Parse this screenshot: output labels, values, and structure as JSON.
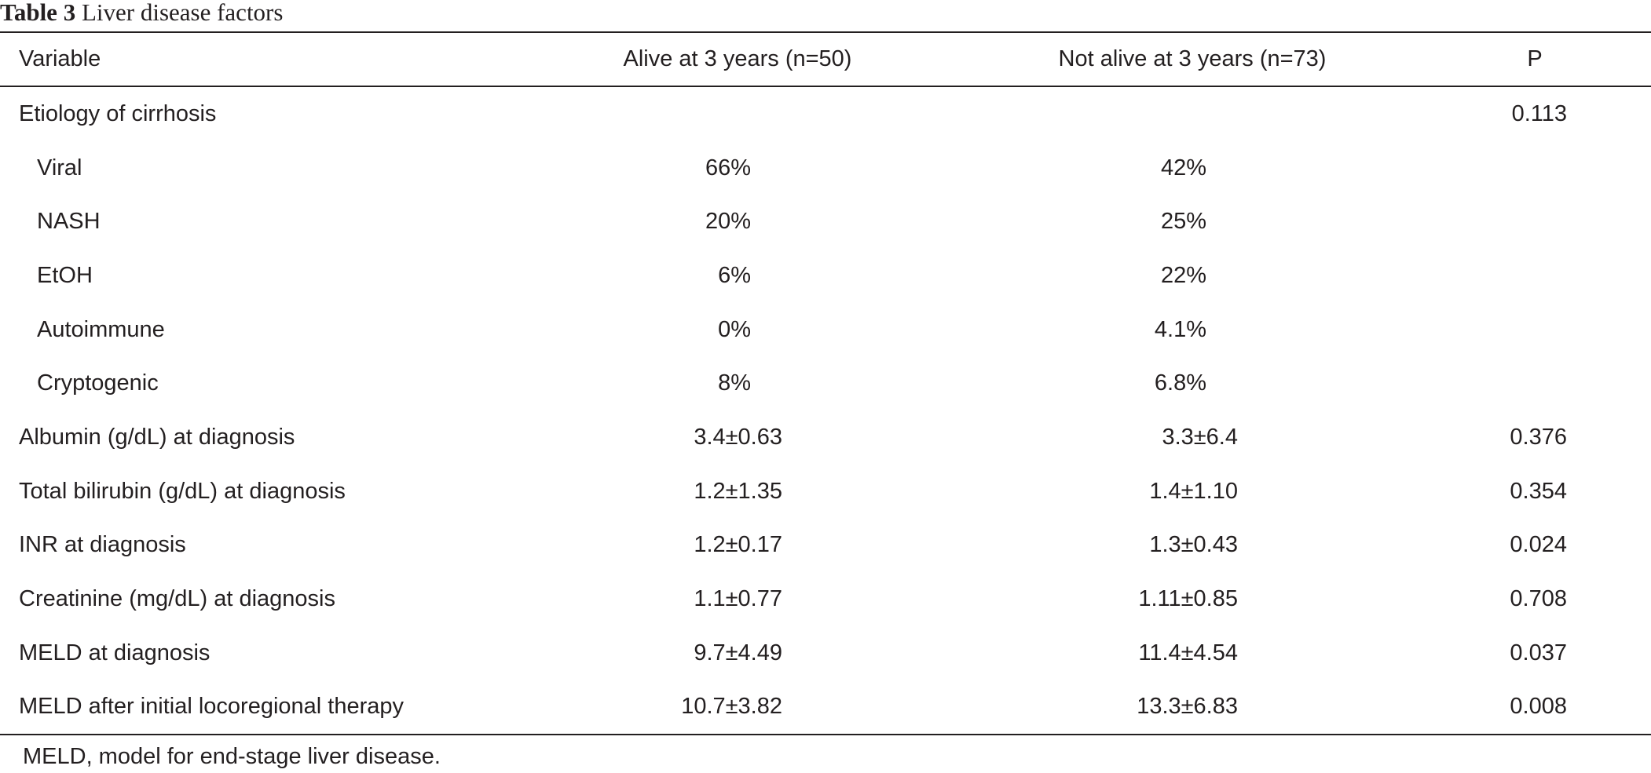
{
  "caption": {
    "label": "Table 3",
    "title": "Liver disease factors"
  },
  "header": {
    "variable": "Variable",
    "alive": "Alive at 3 years (n=50)",
    "not_alive": "Not alive at 3 years (n=73)",
    "p": "P"
  },
  "rows": [
    {
      "variable": "Etiology of cirrhosis",
      "alive": "",
      "not_alive": "",
      "p": "0.113"
    },
    {
      "variable": "Viral",
      "alive": "66%",
      "not_alive": "42%",
      "p": ""
    },
    {
      "variable": "NASH",
      "alive": "20%",
      "not_alive": "25%",
      "p": ""
    },
    {
      "variable": "EtOH",
      "alive": "6%",
      "not_alive": "22%",
      "p": ""
    },
    {
      "variable": "Autoimmune",
      "alive": "0%",
      "not_alive": "4.1%",
      "p": ""
    },
    {
      "variable": "Cryptogenic",
      "alive": "8%",
      "not_alive": "6.8%",
      "p": ""
    },
    {
      "variable": "Albumin (g/dL) at diagnosis",
      "alive": "3.4±0.63",
      "not_alive": "3.3±6.4",
      "p": "0.376"
    },
    {
      "variable": "Total bilirubin (g/dL) at diagnosis",
      "alive": "1.2±1.35",
      "not_alive": "1.4±1.10",
      "p": "0.354"
    },
    {
      "variable": "INR at diagnosis",
      "alive": "1.2±0.17",
      "not_alive": "1.3±0.43",
      "p": "0.024"
    },
    {
      "variable": "Creatinine (mg/dL) at diagnosis",
      "alive": "1.1±0.77",
      "not_alive": "1.11±0.85",
      "p": "0.708"
    },
    {
      "variable": "MELD at diagnosis",
      "alive": "9.7±4.49",
      "not_alive": "11.4±4.54",
      "p": "0.037"
    },
    {
      "variable": "MELD after initial locoregional therapy",
      "alive": "10.7±3.82",
      "not_alive": "13.3±6.83",
      "p": "0.008"
    }
  ],
  "footnote": "MELD, model for end-stage liver disease."
}
